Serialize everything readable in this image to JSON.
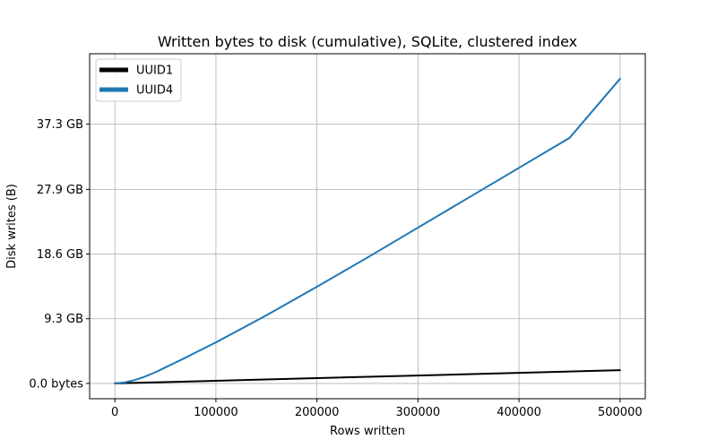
{
  "chart_data": {
    "type": "line",
    "title": "Written bytes to disk (cumulative), SQLite, clustered index",
    "xlabel": "Rows written",
    "ylabel": "Disk writes (B)",
    "xlim": [
      -25000,
      525000
    ],
    "ylim": [
      -2.2,
      47.4
    ],
    "ylim_units": "GB",
    "grid": true,
    "legend_position": "top-left",
    "x_ticks": [
      0,
      100000,
      200000,
      300000,
      400000,
      500000
    ],
    "x_tick_labels": [
      "0",
      "100000",
      "200000",
      "300000",
      "400000",
      "500000"
    ],
    "y_ticks": [
      0,
      9.3,
      18.6,
      27.9,
      37.3
    ],
    "y_tick_labels": [
      "0.0 bytes",
      "9.3 GB",
      "18.6 GB",
      "27.9 GB",
      "37.3 GB"
    ],
    "series": [
      {
        "name": "UUID1",
        "color": "#000000",
        "x": [
          0,
          100000,
          200000,
          300000,
          400000,
          500000
        ],
        "y": [
          0,
          0.38,
          0.76,
          1.14,
          1.52,
          1.9
        ]
      },
      {
        "name": "UUID4",
        "color": "#1f77b4",
        "x": [
          0,
          10000,
          20000,
          30000,
          40000,
          50000,
          60000,
          70000,
          80000,
          100000,
          150000,
          200000,
          250000,
          300000,
          350000,
          400000,
          450000,
          500000
        ],
        "y": [
          0,
          0.15,
          0.5,
          1.0,
          1.6,
          2.3,
          3.0,
          3.7,
          4.45,
          5.9,
          9.8,
          13.9,
          18.1,
          22.4,
          26.7,
          31.0,
          35.3,
          43.8
        ]
      }
    ]
  }
}
